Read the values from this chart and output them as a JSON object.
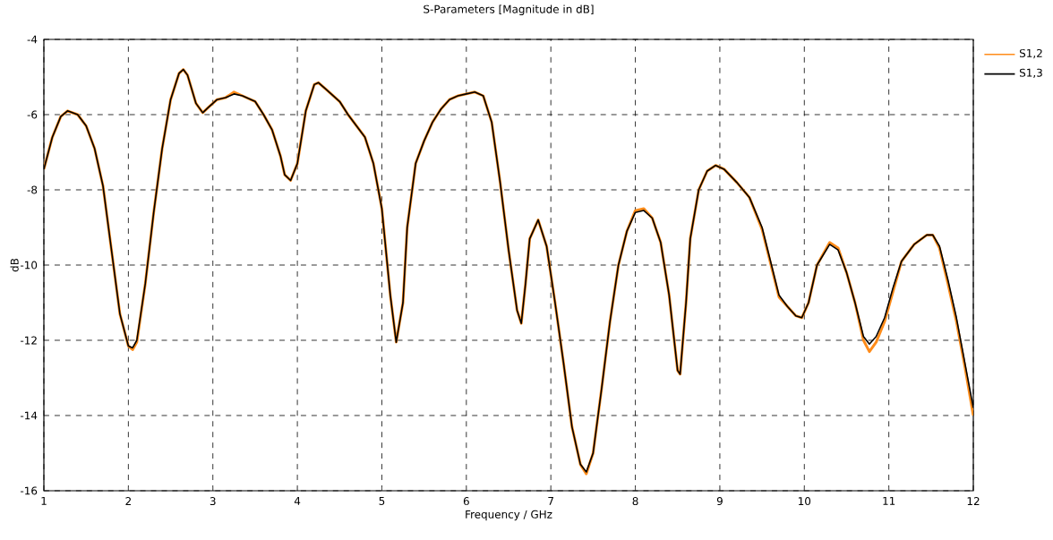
{
  "chart_data": {
    "type": "line",
    "title": "S-Parameters [Magnitude in dB]",
    "xlabel": "Frequency / GHz",
    "ylabel": "dB",
    "xlim": [
      1,
      12
    ],
    "ylim": [
      -16,
      -4
    ],
    "xticks": [
      1,
      2,
      3,
      4,
      5,
      6,
      7,
      8,
      9,
      10,
      11,
      12
    ],
    "yticks": [
      -16,
      -14,
      -12,
      -10,
      -8,
      -6,
      -4
    ],
    "grid": true,
    "legend": "top right",
    "marker": "none",
    "line_style": "solid",
    "x": [
      1.0,
      1.1,
      1.2,
      1.28,
      1.4,
      1.5,
      1.6,
      1.7,
      1.8,
      1.9,
      2.0,
      2.05,
      2.1,
      2.2,
      2.3,
      2.4,
      2.5,
      2.6,
      2.65,
      2.7,
      2.8,
      2.88,
      2.95,
      3.05,
      3.15,
      3.25,
      3.35,
      3.5,
      3.6,
      3.7,
      3.8,
      3.85,
      3.92,
      4.0,
      4.1,
      4.2,
      4.25,
      4.35,
      4.5,
      4.6,
      4.7,
      4.8,
      4.9,
      5.0,
      5.1,
      5.17,
      5.25,
      5.3,
      5.4,
      5.5,
      5.6,
      5.7,
      5.8,
      5.9,
      6.0,
      6.1,
      6.2,
      6.3,
      6.4,
      6.5,
      6.6,
      6.65,
      6.7,
      6.75,
      6.85,
      6.95,
      7.05,
      7.15,
      7.25,
      7.35,
      7.42,
      7.5,
      7.6,
      7.7,
      7.8,
      7.9,
      8.0,
      8.1,
      8.2,
      8.3,
      8.4,
      8.5,
      8.53,
      8.6,
      8.65,
      8.75,
      8.85,
      8.95,
      9.05,
      9.2,
      9.35,
      9.5,
      9.6,
      9.7,
      9.8,
      9.9,
      9.97,
      10.05,
      10.15,
      10.3,
      10.4,
      10.5,
      10.6,
      10.7,
      10.77,
      10.85,
      10.95,
      11.05,
      11.15,
      11.3,
      11.45,
      11.52,
      11.6,
      11.7,
      11.8,
      11.9,
      12.0
    ],
    "series": [
      {
        "name": "S1,2",
        "color": "#ff8c1a",
        "values": [
          -7.45,
          -6.6,
          -6.05,
          -5.9,
          -6.0,
          -6.3,
          -6.9,
          -7.9,
          -9.6,
          -11.3,
          -12.15,
          -12.25,
          -12.05,
          -10.5,
          -8.6,
          -6.9,
          -5.6,
          -4.9,
          -4.8,
          -4.95,
          -5.7,
          -5.95,
          -5.8,
          -5.6,
          -5.55,
          -5.4,
          -5.5,
          -5.65,
          -6.0,
          -6.4,
          -7.1,
          -7.6,
          -7.75,
          -7.3,
          -5.9,
          -5.2,
          -5.15,
          -5.35,
          -5.65,
          -6.0,
          -6.3,
          -6.6,
          -7.3,
          -8.5,
          -10.8,
          -12.05,
          -11.0,
          -9.0,
          -7.3,
          -6.7,
          -6.2,
          -5.85,
          -5.6,
          -5.5,
          -5.45,
          -5.4,
          -5.5,
          -6.2,
          -7.8,
          -9.6,
          -11.2,
          -11.55,
          -10.5,
          -9.3,
          -8.8,
          -9.5,
          -11.0,
          -12.6,
          -14.3,
          -15.3,
          -15.55,
          -15.0,
          -13.3,
          -11.5,
          -10.0,
          -9.1,
          -8.55,
          -8.5,
          -8.75,
          -9.4,
          -10.8,
          -12.8,
          -12.9,
          -11.0,
          -9.3,
          -8.0,
          -7.5,
          -7.35,
          -7.45,
          -7.8,
          -8.2,
          -9.05,
          -9.95,
          -10.85,
          -11.1,
          -11.35,
          -11.4,
          -11.0,
          -10.0,
          -9.4,
          -9.55,
          -10.2,
          -11.0,
          -12.0,
          -12.3,
          -12.05,
          -11.5,
          -10.7,
          -9.9,
          -9.45,
          -9.2,
          -9.2,
          -9.55,
          -10.5,
          -11.5,
          -12.7,
          -14.0
        ]
      },
      {
        "name": "S1,3",
        "color": "#000000",
        "values": [
          -7.45,
          -6.6,
          -6.05,
          -5.9,
          -6.0,
          -6.3,
          -6.9,
          -7.9,
          -9.6,
          -11.3,
          -12.15,
          -12.2,
          -12.0,
          -10.5,
          -8.6,
          -6.9,
          -5.6,
          -4.9,
          -4.8,
          -4.95,
          -5.7,
          -5.95,
          -5.8,
          -5.6,
          -5.55,
          -5.45,
          -5.5,
          -5.65,
          -6.0,
          -6.4,
          -7.1,
          -7.6,
          -7.75,
          -7.3,
          -5.9,
          -5.2,
          -5.15,
          -5.35,
          -5.65,
          -6.0,
          -6.3,
          -6.6,
          -7.3,
          -8.5,
          -10.8,
          -12.05,
          -11.0,
          -9.0,
          -7.3,
          -6.7,
          -6.2,
          -5.85,
          -5.6,
          -5.5,
          -5.45,
          -5.4,
          -5.5,
          -6.2,
          -7.8,
          -9.6,
          -11.2,
          -11.55,
          -10.5,
          -9.3,
          -8.8,
          -9.5,
          -11.0,
          -12.6,
          -14.3,
          -15.3,
          -15.5,
          -15.0,
          -13.3,
          -11.5,
          -10.0,
          -9.1,
          -8.6,
          -8.55,
          -8.75,
          -9.4,
          -10.8,
          -12.8,
          -12.9,
          -11.0,
          -9.3,
          -8.0,
          -7.5,
          -7.35,
          -7.45,
          -7.8,
          -8.2,
          -9.0,
          -9.9,
          -10.8,
          -11.1,
          -11.35,
          -11.4,
          -11.0,
          -10.0,
          -9.45,
          -9.6,
          -10.2,
          -11.0,
          -11.9,
          -12.1,
          -11.9,
          -11.4,
          -10.6,
          -9.9,
          -9.45,
          -9.2,
          -9.2,
          -9.5,
          -10.4,
          -11.4,
          -12.6,
          -13.8
        ]
      }
    ]
  }
}
